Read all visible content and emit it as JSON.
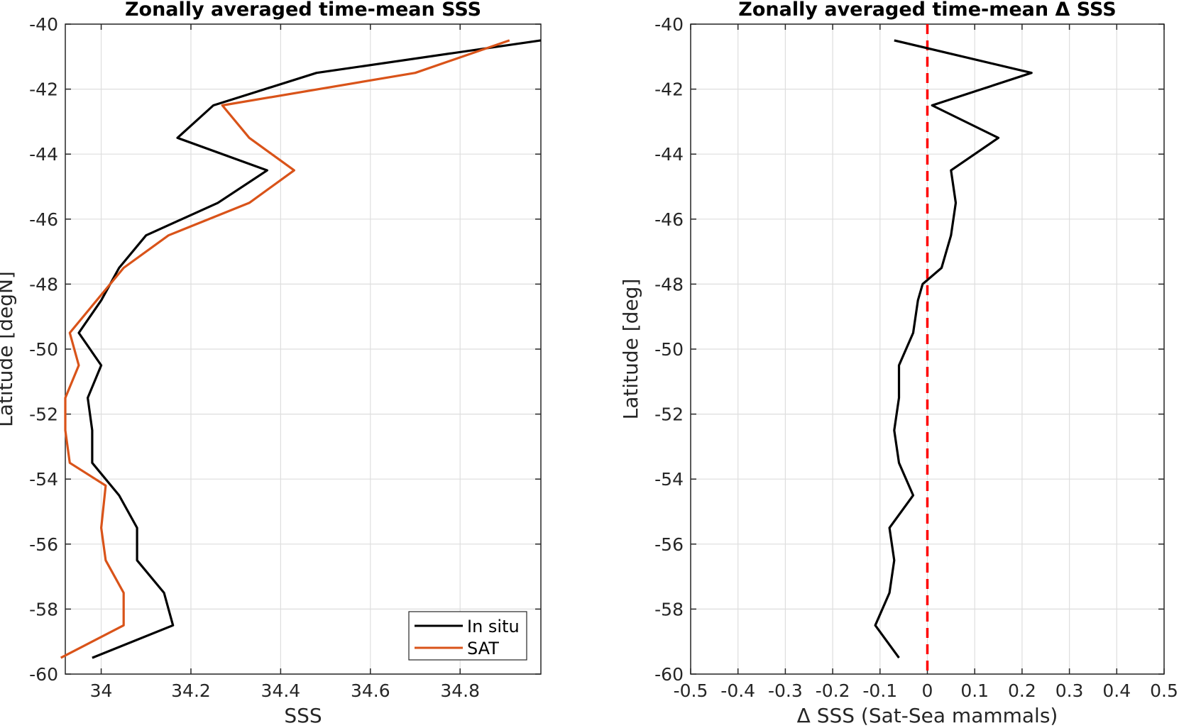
{
  "chart_data": [
    {
      "type": "line",
      "title": "Zonally averaged time-mean SSS",
      "xlabel": "SSS",
      "ylabel": "Latitude [degN]",
      "xlim": [
        33.92,
        34.98
      ],
      "ylim": [
        -60,
        -40
      ],
      "xticks": [
        34,
        34.2,
        34.4,
        34.6,
        34.8
      ],
      "xtick_labels": [
        "34",
        "34.2",
        "34.4",
        "34.6",
        "34.8"
      ],
      "yticks": [
        -40,
        -42,
        -44,
        -46,
        -48,
        -50,
        -52,
        -54,
        -56,
        -58,
        -60
      ],
      "ytick_labels": [
        "-40",
        "-42",
        "-44",
        "-46",
        "-48",
        "-50",
        "-52",
        "-54",
        "-56",
        "-58",
        "-60"
      ],
      "grid": true,
      "legend_position": "bottom-right",
      "series": [
        {
          "name": "In situ",
          "color": "#000000",
          "points": [
            [
              34.98,
              -40.5
            ],
            [
              34.48,
              -41.5
            ],
            [
              34.25,
              -42.5
            ],
            [
              34.17,
              -43.5
            ],
            [
              34.37,
              -44.5
            ],
            [
              34.26,
              -45.5
            ],
            [
              34.1,
              -46.5
            ],
            [
              34.04,
              -47.5
            ],
            [
              34.0,
              -48.5
            ],
            [
              33.95,
              -49.5
            ],
            [
              34.0,
              -50.5
            ],
            [
              33.97,
              -51.5
            ],
            [
              33.98,
              -52.5
            ],
            [
              33.98,
              -53.5
            ],
            [
              34.04,
              -54.5
            ],
            [
              34.08,
              -55.5
            ],
            [
              34.08,
              -56.5
            ],
            [
              34.14,
              -57.5
            ],
            [
              34.16,
              -58.5
            ],
            [
              33.98,
              -59.5
            ]
          ]
        },
        {
          "name": "SAT",
          "color": "#d95319",
          "points": [
            [
              34.91,
              -40.5
            ],
            [
              34.7,
              -41.5
            ],
            [
              34.27,
              -42.5
            ],
            [
              34.33,
              -43.5
            ],
            [
              34.43,
              -44.5
            ],
            [
              34.33,
              -45.5
            ],
            [
              34.15,
              -46.5
            ],
            [
              34.05,
              -47.5
            ],
            [
              33.99,
              -48.5
            ],
            [
              33.93,
              -49.5
            ],
            [
              33.95,
              -50.5
            ],
            [
              33.92,
              -51.5
            ],
            [
              33.92,
              -52.5
            ],
            [
              33.93,
              -53.5
            ],
            [
              34.01,
              -54.2
            ],
            [
              34.0,
              -55.5
            ],
            [
              34.01,
              -56.5
            ],
            [
              34.05,
              -57.5
            ],
            [
              34.05,
              -58.5
            ],
            [
              33.91,
              -59.5
            ]
          ]
        }
      ]
    },
    {
      "type": "line",
      "title": "Zonally averaged time-mean Δ SSS",
      "xlabel": "Δ SSS (Sat-Sea mammals)",
      "ylabel": "Latitude [deg]",
      "xlim": [
        -0.5,
        0.5
      ],
      "ylim": [
        -60,
        -40
      ],
      "xticks": [
        -0.5,
        -0.4,
        -0.3,
        -0.2,
        -0.1,
        0,
        0.1,
        0.2,
        0.3,
        0.4,
        0.5
      ],
      "xtick_labels": [
        "-0.5",
        "-0.4",
        "-0.3",
        "-0.2",
        "-0.1",
        "0",
        "0.1",
        "0.2",
        "0.3",
        "0.4",
        "0.5"
      ],
      "yticks": [
        -40,
        -42,
        -44,
        -46,
        -48,
        -50,
        -52,
        -54,
        -56,
        -58,
        -60
      ],
      "ytick_labels": [
        "-40",
        "-42",
        "-44",
        "-46",
        "-48",
        "-50",
        "-52",
        "-54",
        "-56",
        "-58",
        "-60"
      ],
      "grid": true,
      "reference_line": {
        "x": 0,
        "color": "#ff0000",
        "style": "dashed"
      },
      "series": [
        {
          "color": "#000000",
          "points": [
            [
              -0.07,
              -40.5
            ],
            [
              0.22,
              -41.5
            ],
            [
              0.01,
              -42.5
            ],
            [
              0.15,
              -43.5
            ],
            [
              0.05,
              -44.5
            ],
            [
              0.06,
              -45.5
            ],
            [
              0.05,
              -46.5
            ],
            [
              0.03,
              -47.5
            ],
            [
              -0.01,
              -48.0
            ],
            [
              -0.02,
              -48.5
            ],
            [
              -0.03,
              -49.5
            ],
            [
              -0.06,
              -50.5
            ],
            [
              -0.06,
              -51.5
            ],
            [
              -0.07,
              -52.5
            ],
            [
              -0.06,
              -53.5
            ],
            [
              -0.03,
              -54.5
            ],
            [
              -0.08,
              -55.5
            ],
            [
              -0.07,
              -56.5
            ],
            [
              -0.08,
              -57.5
            ],
            [
              -0.11,
              -58.5
            ],
            [
              -0.06,
              -59.5
            ]
          ]
        }
      ]
    }
  ],
  "legend": {
    "entries": [
      {
        "label": "In situ",
        "color": "#000000"
      },
      {
        "label": "SAT",
        "color": "#d95319"
      }
    ]
  }
}
